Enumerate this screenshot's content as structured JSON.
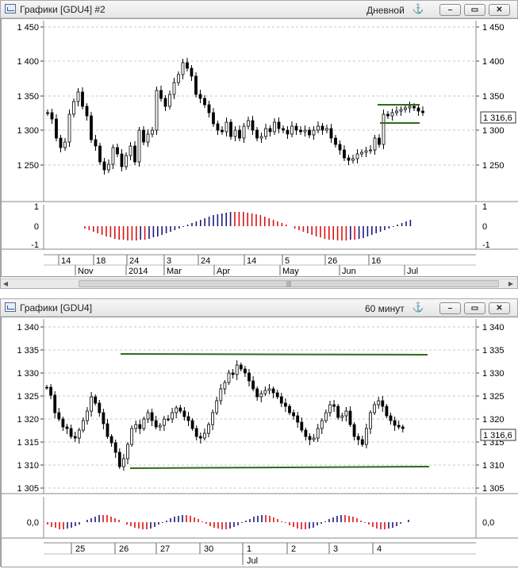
{
  "windows": [
    {
      "title": "Графики [GDU4] #2",
      "timeframe": "Дневной",
      "pin_icon": "anchor-icon",
      "price_axis": {
        "ticks": [
          "1 450",
          "1 400",
          "1 350",
          "1 300",
          "1 250"
        ],
        "last_price": "1 316,6"
      },
      "osc_axis": {
        "ticks": [
          "1",
          "0",
          "-1"
        ]
      },
      "time_row1": [
        "14",
        "18",
        "24",
        "3",
        "24",
        "14",
        "5",
        "26",
        "16"
      ],
      "time_row2": [
        "Nov",
        "2014",
        "Mar",
        "Apr",
        "May",
        "Jun",
        "Jul"
      ],
      "scroll_grip": "|||"
    },
    {
      "title": "Графики [GDU4]",
      "timeframe": "60 минут",
      "pin_icon": "anchor-icon",
      "price_axis": {
        "ticks": [
          "1 340",
          "1 335",
          "1 330",
          "1 325",
          "1 320",
          "1 315",
          "1 310",
          "1 305"
        ],
        "last_price": "1 316,6"
      },
      "osc_axis": {
        "ticks": [
          "0,0"
        ]
      },
      "time_row1": [
        "25",
        "26",
        "27",
        "30",
        "1",
        "2",
        "3",
        "4"
      ],
      "time_row2": [
        "Jul"
      ]
    }
  ],
  "colors": {
    "up": "#1a1a7a",
    "down": "#dd1111",
    "trend_line": "#2e6b1a",
    "grid": "#c8c8c8"
  }
}
